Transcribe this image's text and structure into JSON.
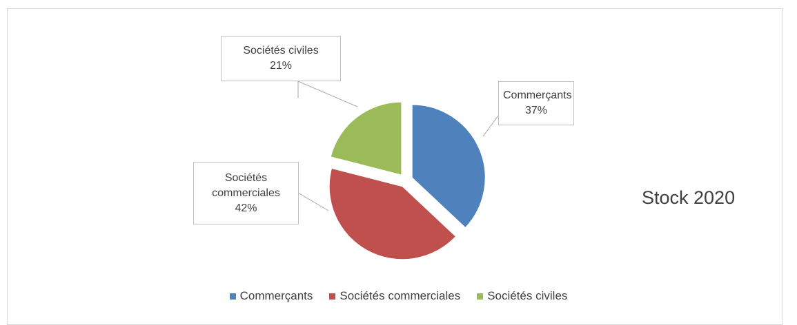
{
  "chart_data": {
    "type": "pie",
    "title": "Stock 2020",
    "categories": [
      "Commerçants",
      "Sociétés commerciales",
      "Sociétés civiles"
    ],
    "values": [
      37,
      42,
      21
    ],
    "value_labels": [
      "37%",
      "42%",
      "21%"
    ],
    "colors": [
      "#4f81bd",
      "#c0504d",
      "#9bbb59"
    ],
    "legend": "bottom"
  }
}
